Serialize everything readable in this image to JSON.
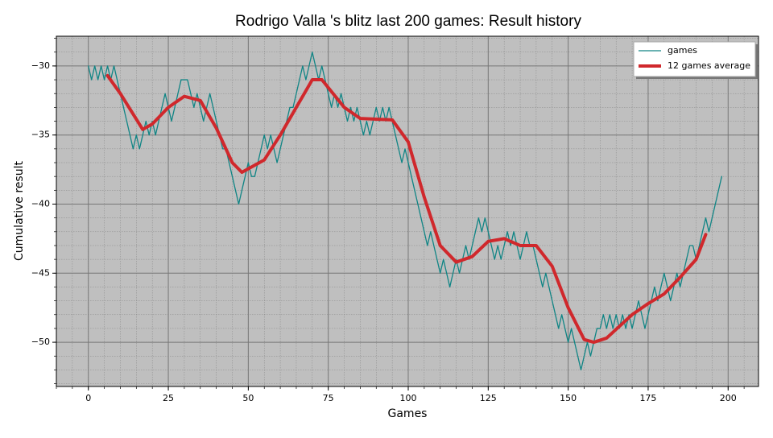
{
  "chart_data": {
    "type": "line",
    "title": "Rodrigo Valla 's blitz last 200 games: Result history",
    "x_label": "Games",
    "y_label": "Cumulative result",
    "xlim": [
      -10,
      209.5
    ],
    "ylim": [
      -53.2,
      -27.85
    ],
    "xticks": [
      0,
      25,
      50,
      75,
      100,
      125,
      150,
      175,
      200
    ],
    "yticks": [
      {
        "value": -30,
        "label": "−30"
      },
      {
        "value": -35,
        "label": "−35"
      },
      {
        "value": -40,
        "label": "−40"
      },
      {
        "value": -45,
        "label": "−45"
      },
      {
        "value": -50,
        "label": "−50"
      }
    ],
    "grid": true,
    "minor_grid": true,
    "legend": "upper right",
    "series": [
      {
        "name": "games",
        "color": "#108585",
        "width": 1.3,
        "x": [
          0,
          1,
          2,
          3,
          4,
          5,
          6,
          7,
          8,
          9,
          10,
          11,
          12,
          13,
          14,
          15,
          16,
          17,
          18,
          19,
          20,
          21,
          22,
          23,
          24,
          25,
          26,
          27,
          28,
          29,
          30,
          31,
          32,
          33,
          34,
          35,
          36,
          37,
          38,
          39,
          40,
          41,
          42,
          43,
          44,
          45,
          46,
          47,
          48,
          49,
          50,
          51,
          52,
          53,
          54,
          55,
          56,
          57,
          58,
          59,
          60,
          61,
          62,
          63,
          64,
          65,
          66,
          67,
          68,
          69,
          70,
          71,
          72,
          73,
          74,
          75,
          76,
          77,
          78,
          79,
          80,
          81,
          82,
          83,
          84,
          85,
          86,
          87,
          88,
          89,
          90,
          91,
          92,
          93,
          94,
          95,
          96,
          97,
          98,
          99,
          100,
          101,
          102,
          103,
          104,
          105,
          106,
          107,
          108,
          109,
          110,
          111,
          112,
          113,
          114,
          115,
          116,
          117,
          118,
          119,
          120,
          121,
          122,
          123,
          124,
          125,
          126,
          127,
          128,
          129,
          130,
          131,
          132,
          133,
          134,
          135,
          136,
          137,
          138,
          139,
          140,
          141,
          142,
          143,
          144,
          145,
          146,
          147,
          148,
          149,
          150,
          151,
          152,
          153,
          154,
          155,
          156,
          157,
          158,
          159,
          160,
          161,
          162,
          163,
          164,
          165,
          166,
          167,
          168,
          169,
          170,
          171,
          172,
          173,
          174,
          175,
          176,
          177,
          178,
          179,
          180,
          181,
          182,
          183,
          184,
          185,
          186,
          187,
          188,
          189,
          190,
          191,
          192,
          193,
          194,
          195,
          196,
          197,
          198
        ],
        "values": [
          -30,
          -31,
          -30,
          -31,
          -30,
          -31,
          -30,
          -31,
          -30,
          -31,
          -32,
          -33,
          -34,
          -35,
          -36,
          -35,
          -36,
          -35,
          -34,
          -35,
          -34,
          -35,
          -34,
          -33,
          -32,
          -33,
          -34,
          -33,
          -32,
          -31,
          -31,
          -31,
          -32,
          -33,
          -32,
          -33,
          -34,
          -33,
          -32,
          -33,
          -34,
          -35,
          -36,
          -36,
          -37,
          -38,
          -39,
          -40,
          -39,
          -38,
          -37,
          -38,
          -38,
          -37,
          -36,
          -35,
          -36,
          -35,
          -36,
          -37,
          -36,
          -35,
          -34,
          -33,
          -33,
          -32,
          -31,
          -30,
          -31,
          -30,
          -29,
          -30,
          -31,
          -30,
          -31,
          -32,
          -33,
          -32,
          -33,
          -32,
          -33,
          -34,
          -33,
          -34,
          -33,
          -34,
          -35,
          -34,
          -35,
          -34,
          -33,
          -34,
          -33,
          -34,
          -33,
          -34,
          -35,
          -36,
          -37,
          -36,
          -37,
          -38,
          -39,
          -40,
          -41,
          -42,
          -43,
          -42,
          -43,
          -44,
          -45,
          -44,
          -45,
          -46,
          -45,
          -44,
          -45,
          -44,
          -43,
          -44,
          -43,
          -42,
          -41,
          -42,
          -41,
          -42,
          -43,
          -44,
          -43,
          -44,
          -43,
          -42,
          -43,
          -42,
          -43,
          -44,
          -43,
          -42,
          -43,
          -43,
          -44,
          -45,
          -46,
          -45,
          -46,
          -47,
          -48,
          -49,
          -48,
          -49,
          -50,
          -49,
          -50,
          -51,
          -52,
          -51,
          -50,
          -51,
          -50,
          -49,
          -49,
          -48,
          -49,
          -48,
          -49,
          -48,
          -49,
          -48,
          -49,
          -48,
          -49,
          -48,
          -47,
          -48,
          -49,
          -48,
          -47,
          -46,
          -47,
          -46,
          -45,
          -46,
          -47,
          -46,
          -45,
          -46,
          -45,
          -44,
          -43,
          -43,
          -44,
          -43,
          -42,
          -41,
          -42,
          -41,
          -40,
          -39,
          -38
        ]
      },
      {
        "name": "12 games average",
        "color": "#d0282c",
        "width": 4,
        "x": [
          6,
          10,
          17,
          20,
          25,
          30,
          35,
          40,
          45,
          48,
          55,
          60,
          65,
          70,
          73,
          80,
          85,
          95,
          100,
          105,
          110,
          115,
          120,
          125,
          130,
          135,
          140,
          145,
          150,
          155,
          158,
          162,
          170,
          175,
          180,
          185,
          190,
          193
        ],
        "values": [
          -30.7,
          -32,
          -34.6,
          -34.2,
          -33,
          -32.2,
          -32.5,
          -34.5,
          -37,
          -37.7,
          -36.8,
          -35,
          -33,
          -31,
          -31,
          -33,
          -33.8,
          -33.9,
          -35.5,
          -39.5,
          -43,
          -44.2,
          -43.8,
          -42.7,
          -42.5,
          -43,
          -43,
          -44.5,
          -47.5,
          -49.8,
          -50,
          -49.7,
          -48,
          -47.2,
          -46.5,
          -45.3,
          -44,
          -42.2
        ]
      }
    ]
  }
}
